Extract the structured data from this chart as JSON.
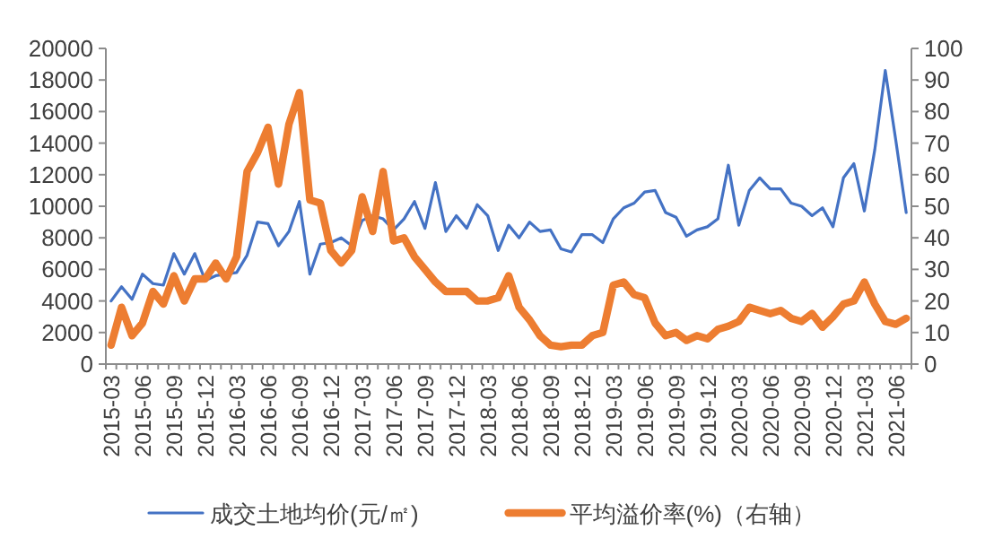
{
  "chart_data": {
    "type": "line",
    "categories": [
      "2015-03",
      null,
      null,
      "2015-06",
      null,
      null,
      "2015-09",
      null,
      null,
      "2015-12",
      null,
      null,
      "2016-03",
      null,
      null,
      "2016-06",
      null,
      null,
      "2016-09",
      null,
      null,
      "2016-12",
      null,
      null,
      "2017-03",
      null,
      null,
      "2017-06",
      null,
      null,
      "2017-09",
      null,
      null,
      "2017-12",
      null,
      null,
      "2018-03",
      null,
      null,
      "2018-06",
      null,
      null,
      "2018-09",
      null,
      null,
      "2018-12",
      null,
      null,
      "2019-03",
      null,
      null,
      "2019-06",
      null,
      null,
      "2019-09",
      null,
      null,
      "2019-12",
      null,
      null,
      "2020-03",
      null,
      null,
      "2020-06",
      null,
      null,
      "2020-09",
      null,
      null,
      "2020-12",
      null,
      null,
      "2021-03",
      null,
      null,
      "2021-06",
      null
    ],
    "series": [
      {
        "name": "成交土地均价(元/㎡)",
        "color": "#4472c4",
        "values": [
          4000,
          4900,
          4100,
          5700,
          5100,
          5000,
          7000,
          5700,
          7000,
          5300,
          5600,
          5700,
          5800,
          6900,
          9000,
          8900,
          7500,
          8400,
          10300,
          5700,
          7600,
          7700,
          8000,
          7500,
          9100,
          9400,
          9200,
          8500,
          9200,
          10300,
          8600,
          11500,
          8400,
          9400,
          8600,
          10100,
          9400,
          7200,
          8800,
          8000,
          9000,
          8400,
          8500,
          7300,
          7100,
          8200,
          8200,
          7700,
          9200,
          9900,
          10200,
          10900,
          11000,
          9600,
          9300,
          8100,
          8500,
          8700,
          9200,
          12600,
          8800,
          11000,
          11800,
          11100,
          11100,
          10200,
          10000,
          9400,
          9900,
          8700,
          11800,
          12700,
          9700,
          13600,
          18600,
          14200,
          9600
        ]
      },
      {
        "name": "平均溢价率(%)（右轴）",
        "color": "#ed7d31",
        "axis": "y2",
        "values": [
          6,
          18,
          9,
          13,
          23,
          19,
          28,
          20,
          27,
          27,
          32,
          27,
          34,
          61,
          67,
          75,
          57,
          76,
          86,
          52,
          51,
          36,
          32,
          36,
          53,
          42,
          61,
          39,
          40,
          34,
          30,
          26,
          23,
          23,
          23,
          20,
          20,
          21,
          28,
          18,
          14,
          9,
          6,
          5.5,
          6,
          6,
          9,
          10,
          25,
          26,
          22,
          21,
          13,
          9,
          10,
          7.5,
          9,
          8,
          11,
          12,
          13.5,
          18,
          17,
          16,
          17,
          14.5,
          13.5,
          16,
          11.7,
          15,
          19,
          20,
          26,
          19,
          13.5,
          12.6,
          14.5
        ]
      }
    ],
    "ylim": [
      0,
      20000
    ],
    "yticks": [
      0,
      2000,
      4000,
      6000,
      8000,
      10000,
      12000,
      14000,
      16000,
      18000,
      20000
    ],
    "y2lim": [
      0,
      100
    ],
    "y2ticks": [
      0,
      10,
      20,
      30,
      40,
      50,
      60,
      70,
      80,
      90,
      100
    ],
    "legend": "bottom"
  }
}
